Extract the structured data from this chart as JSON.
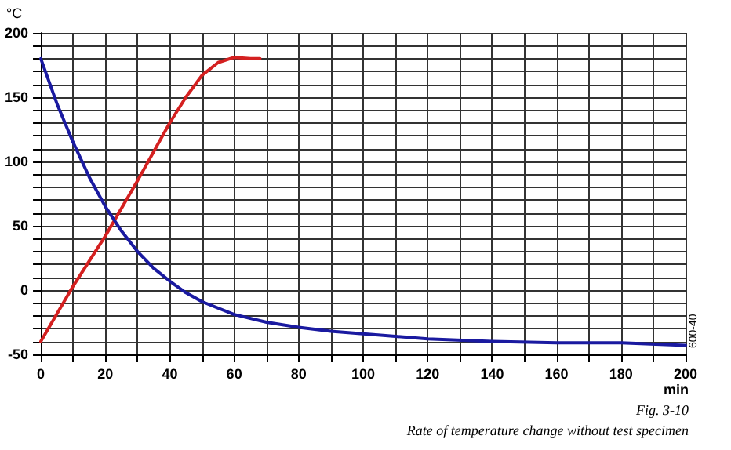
{
  "chart_data": {
    "type": "line",
    "ylabel": "°C",
    "xlabel": "min",
    "annotations": [
      "Fig. 3-10",
      "Rate of temperature change without test specimen",
      "600-40"
    ],
    "xlim": [
      0,
      200
    ],
    "ylim": [
      -50,
      200
    ],
    "xticks": [
      0,
      {
        "value": 10,
        "label": null
      },
      20,
      {
        "value": 30,
        "label": null
      },
      40,
      {
        "value": 50,
        "label": null
      },
      60,
      {
        "value": 70,
        "label": null
      },
      80,
      {
        "value": 90,
        "label": null
      },
      100,
      {
        "value": 110,
        "label": null
      },
      120,
      {
        "value": 130,
        "label": null
      },
      140,
      {
        "value": 150,
        "label": null
      },
      160,
      {
        "value": 170,
        "label": null
      },
      180,
      {
        "value": 190,
        "label": null
      },
      200
    ],
    "yticks": [
      -50,
      {
        "value": -40,
        "label": null
      },
      {
        "value": -30,
        "label": null
      },
      {
        "value": -20,
        "label": null
      },
      {
        "value": -10,
        "label": null
      },
      0,
      {
        "value": 10,
        "label": null
      },
      {
        "value": 20,
        "label": null
      },
      {
        "value": 30,
        "label": null
      },
      {
        "value": 40,
        "label": null
      },
      50,
      {
        "value": 60,
        "label": null
      },
      {
        "value": 70,
        "label": null
      },
      {
        "value": 80,
        "label": null
      },
      {
        "value": 90,
        "label": null
      },
      100,
      {
        "value": 110,
        "label": null
      },
      {
        "value": 120,
        "label": null
      },
      {
        "value": 130,
        "label": null
      },
      {
        "value": 140,
        "label": null
      },
      150,
      {
        "value": 160,
        "label": null
      },
      {
        "value": 170,
        "label": null
      },
      {
        "value": 180,
        "label": null
      },
      {
        "value": 190,
        "label": null
      },
      200
    ],
    "grid": true,
    "marker": "none",
    "line_style": "solid",
    "series": [
      {
        "color": "#d42020",
        "x": [
          0,
          10,
          20,
          30,
          40,
          45,
          50,
          55,
          60,
          65,
          68
        ],
        "values": [
          -40,
          3,
          42,
          85,
          130,
          150,
          167,
          177,
          181,
          180,
          180
        ]
      },
      {
        "color": "#1a1aa0",
        "x": [
          0,
          5,
          10,
          15,
          20,
          25,
          30,
          35,
          40,
          45,
          50,
          60,
          70,
          80,
          90,
          100,
          110,
          120,
          140,
          160,
          180,
          200
        ],
        "values": [
          180,
          145,
          115,
          88,
          65,
          46,
          30,
          17,
          7,
          -2,
          -9,
          -19,
          -25,
          -29,
          -32,
          -34,
          -36,
          -38,
          -40,
          -41,
          -41,
          -43
        ]
      }
    ]
  }
}
